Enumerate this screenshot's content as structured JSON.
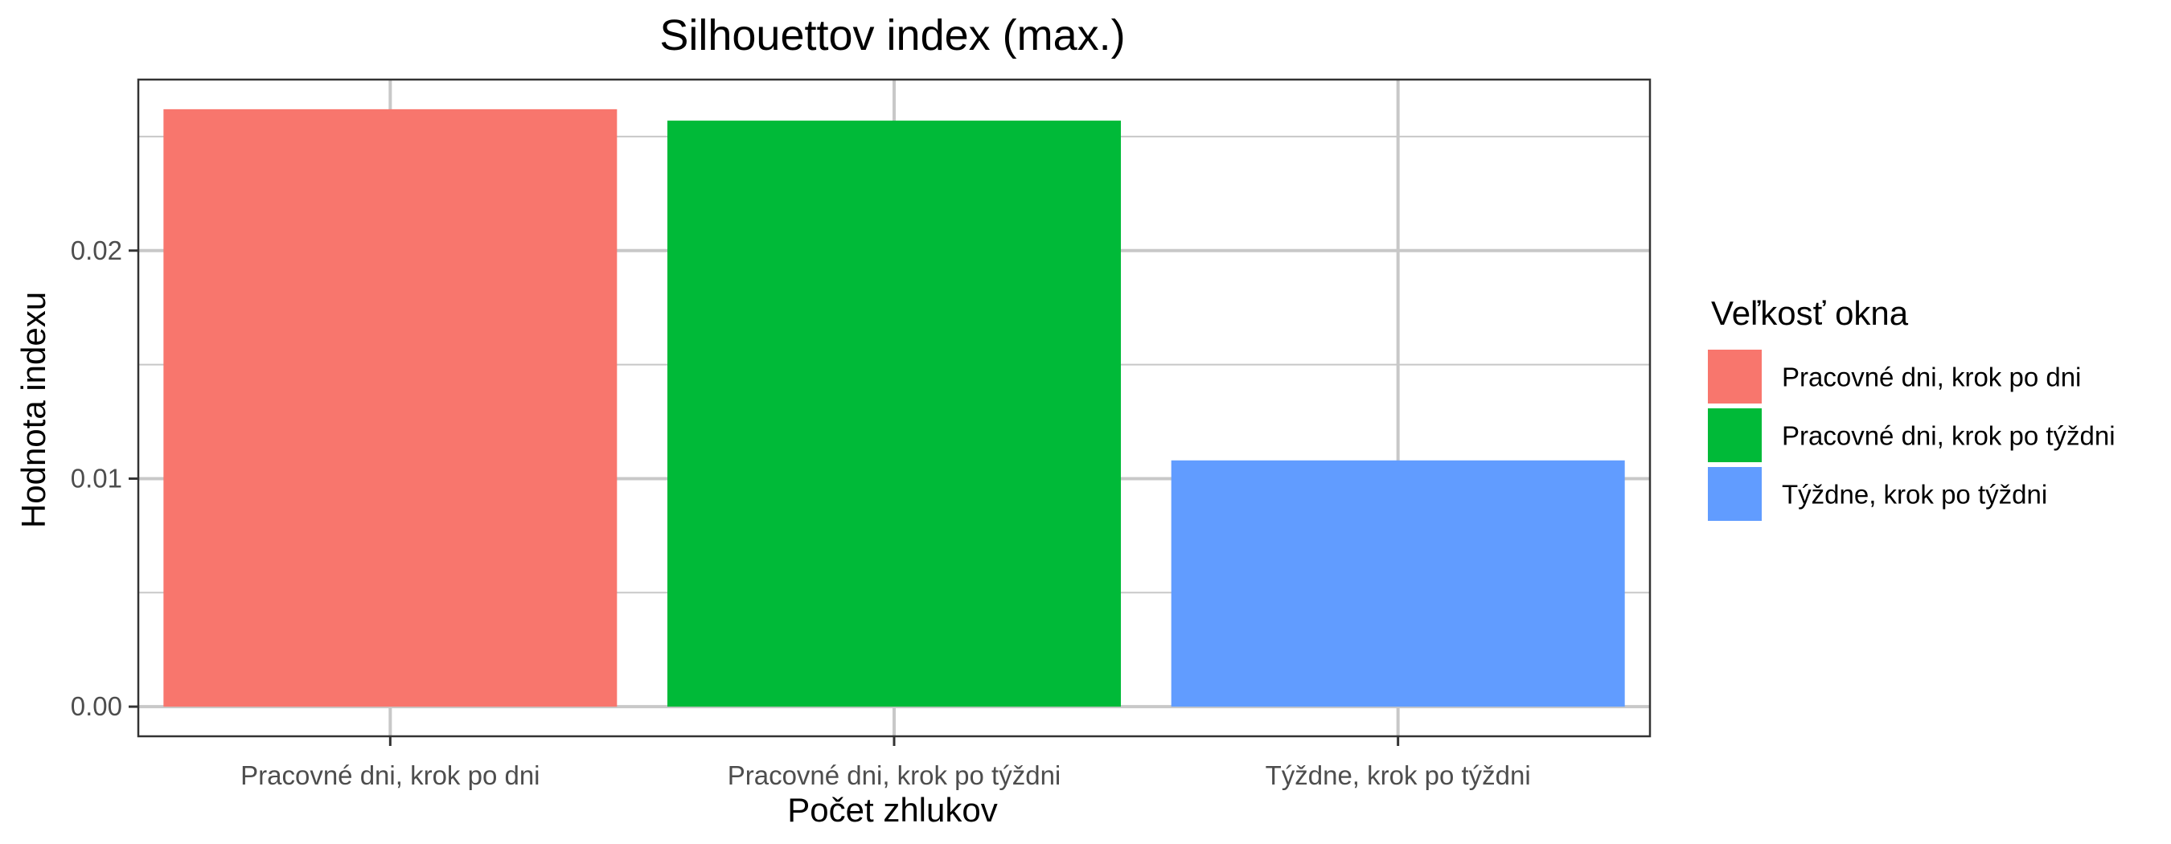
{
  "chart_data": {
    "type": "bar",
    "title": "Silhouettov index (max.)",
    "xlabel": "Počet zhlukov",
    "ylabel": "Hodnota indexu",
    "categories": [
      "Pracovné dni, krok po dni",
      "Pracovné dni, krok po týždni",
      "Týždne, krok po týždni"
    ],
    "values": [
      0.0262,
      0.0257,
      0.0108
    ],
    "colors": [
      "#F8766D",
      "#00BA38",
      "#619CFF"
    ],
    "ylim": [
      -0.0013,
      0.0275
    ],
    "yticks": [
      0.0,
      0.01,
      0.02
    ],
    "ytick_labels": [
      "0.00",
      "0.01",
      "0.02"
    ],
    "grid": true,
    "legend": {
      "title": "Veľkosť okna",
      "position": "right",
      "items": [
        "Pracovné dni, krok po dni",
        "Pracovné dni, krok po týždni",
        "Týždne, krok po týždni"
      ]
    }
  }
}
